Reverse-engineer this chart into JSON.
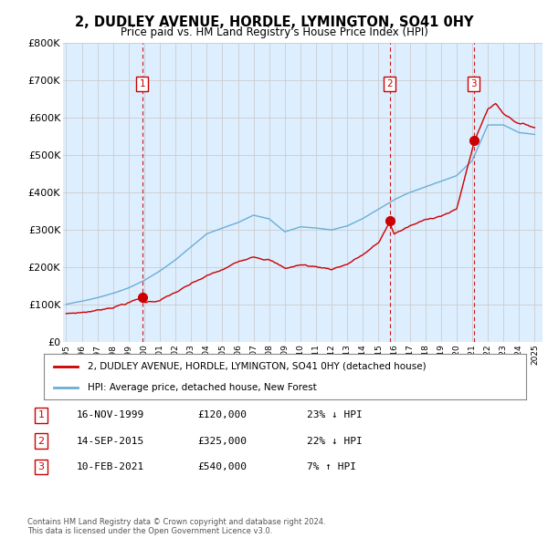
{
  "title": "2, DUDLEY AVENUE, HORDLE, LYMINGTON, SO41 0HY",
  "subtitle": "Price paid vs. HM Land Registry's House Price Index (HPI)",
  "ylim": [
    0,
    800000
  ],
  "yticks": [
    0,
    100000,
    200000,
    300000,
    400000,
    500000,
    600000,
    700000,
    800000
  ],
  "ytick_labels": [
    "£0",
    "£100K",
    "£200K",
    "£300K",
    "£400K",
    "£500K",
    "£600K",
    "£700K",
    "£800K"
  ],
  "hpi_color": "#6baed6",
  "price_color": "#cc0000",
  "plot_bg_color": "#ddeeff",
  "sale_points": [
    {
      "year": 1999.88,
      "price": 120000,
      "label": "1"
    },
    {
      "year": 2015.71,
      "price": 325000,
      "label": "2"
    },
    {
      "year": 2021.11,
      "price": 540000,
      "label": "3"
    }
  ],
  "table_rows": [
    {
      "num": "1",
      "date": "16-NOV-1999",
      "price": "£120,000",
      "hpi": "23% ↓ HPI"
    },
    {
      "num": "2",
      "date": "14-SEP-2015",
      "price": "£325,000",
      "hpi": "22% ↓ HPI"
    },
    {
      "num": "3",
      "date": "10-FEB-2021",
      "price": "£540,000",
      "hpi": "7% ↑ HPI"
    }
  ],
  "legend_entries": [
    "2, DUDLEY AVENUE, HORDLE, LYMINGTON, SO41 0HY (detached house)",
    "HPI: Average price, detached house, New Forest"
  ],
  "footer": "Contains HM Land Registry data © Crown copyright and database right 2024.\nThis data is licensed under the Open Government Licence v3.0.",
  "background_color": "#ffffff",
  "grid_color": "#cccccc"
}
